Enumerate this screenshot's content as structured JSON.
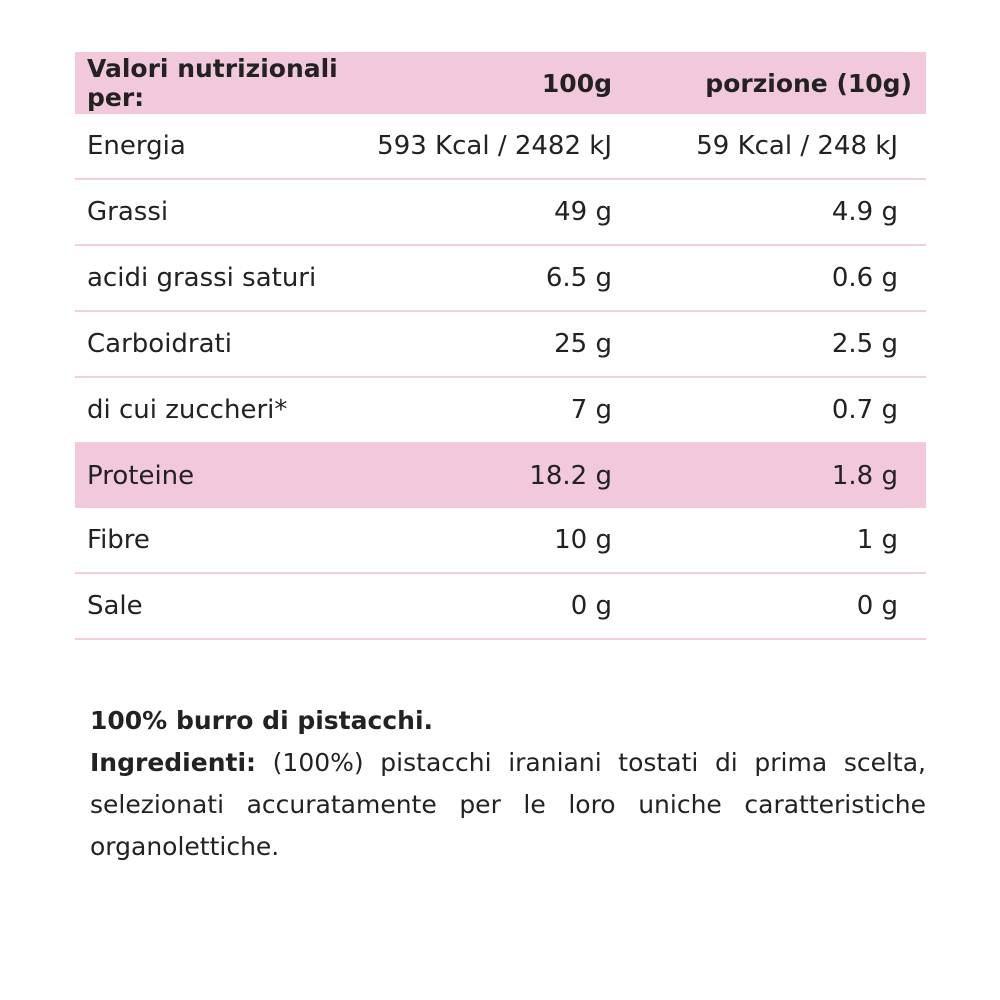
{
  "table": {
    "header": [
      "Valori nutrizionali per:",
      "100g",
      "porzione (10g)"
    ],
    "rows": [
      [
        "Energia",
        "593 Kcal / 2482 kJ",
        "59 Kcal / 248 kJ"
      ],
      [
        "Grassi",
        "49 g",
        "4.9 g"
      ],
      [
        "acidi grassi saturi",
        "6.5 g",
        "0.6 g"
      ],
      [
        "Carboidrati",
        "25 g",
        "2.5 g"
      ],
      [
        "di cui zuccheri*",
        "7 g",
        "0.7 g"
      ],
      [
        "Proteine",
        "18.2 g",
        "1.8 g"
      ],
      [
        "Fibre",
        "10 g",
        "1 g"
      ],
      [
        "Sale",
        "0 g",
        "0 g"
      ]
    ]
  },
  "footer": {
    "title": "100% burro di pistacchi.",
    "label": "Ingredienti:",
    "text": "(100%) pistacchi iraniani tostati di prima scelta, selezionati accuratamente per le loro uniche caratteristiche organolettiche."
  }
}
